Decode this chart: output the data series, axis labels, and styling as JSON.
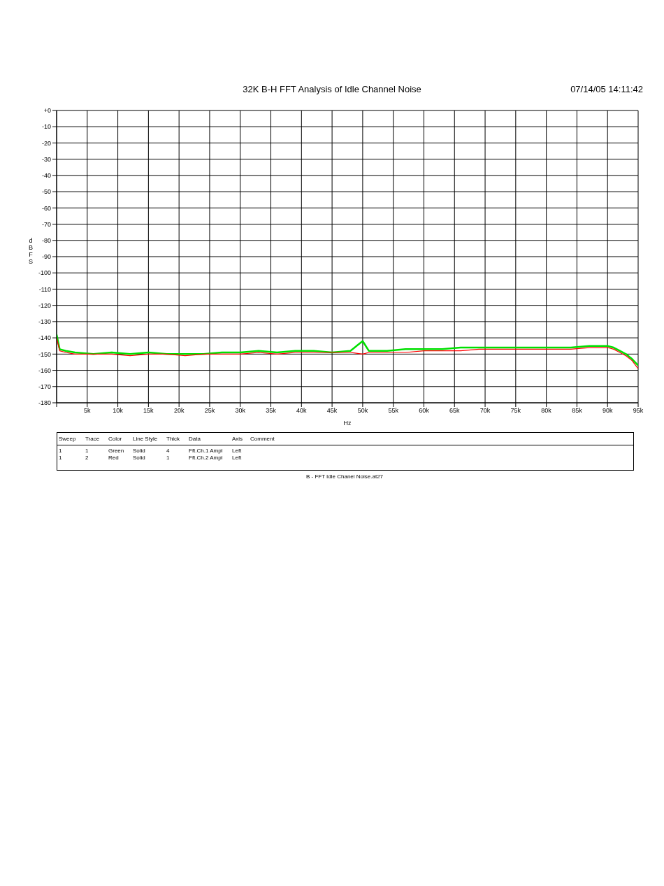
{
  "chart_data": {
    "type": "line",
    "title": "32K B-H FFT Analysis of Idle Channel Noise",
    "xlabel": "Hz",
    "ylabel": "dBFS",
    "annotations": [
      "07/14/05 14:11:42",
      "B - FFT Idle Chanel Noise.at27",
      "Sweep",
      "Trace",
      "Color",
      "Line Style",
      "Thick",
      "Data",
      "Axis",
      "Comment",
      "1",
      "1",
      "Green",
      "Solid",
      "4",
      "Fft.Ch.1 Ampl",
      "Left",
      "1",
      "2",
      "Red",
      "Solid",
      "1",
      "Fft.Ch.2 Ampl",
      "Left"
    ],
    "x": [
      0,
      500,
      1500,
      3000,
      6000,
      9000,
      12000,
      15000,
      18000,
      21000,
      24000,
      27000,
      30000,
      33000,
      36000,
      39000,
      42000,
      45000,
      48000,
      50000,
      51000,
      54000,
      57000,
      60000,
      63000,
      66000,
      69000,
      72000,
      75000,
      78000,
      81000,
      84000,
      87000,
      90000,
      91000,
      92000,
      93000,
      94000,
      95000
    ],
    "series": [
      {
        "color": "#00e000",
        "values": [
          -138,
          -147,
          -148,
          -149,
          -150,
          -149,
          -150,
          -149,
          -150,
          -150,
          -150,
          -149,
          -149,
          -148,
          -149,
          -148,
          -148,
          -149,
          -148,
          -142,
          -148,
          -148,
          -147,
          -147,
          -147,
          -146,
          -146,
          -146,
          -146,
          -146,
          -146,
          -146,
          -145,
          -145,
          -146,
          -148,
          -150,
          -153,
          -157
        ]
      },
      {
        "color": "#ff0000",
        "values": [
          -140,
          -148,
          -149,
          -150,
          -150,
          -150,
          -151,
          -150,
          -150,
          -151,
          -150,
          -150,
          -150,
          -149,
          -150,
          -149,
          -149,
          -149,
          -149,
          -150,
          -149,
          -149,
          -149,
          -148,
          -148,
          -148,
          -147,
          -147,
          -147,
          -147,
          -147,
          -147,
          -146,
          -146,
          -147,
          -149,
          -151,
          -154,
          -159
        ]
      }
    ],
    "xlim": [
      0,
      95000
    ],
    "xticks": [
      {
        "value": 0,
        "label": null
      },
      {
        "value": 5000,
        "label": "5k"
      },
      {
        "value": 10000,
        "label": "10k"
      },
      {
        "value": 15000,
        "label": "15k"
      },
      {
        "value": 20000,
        "label": "20k"
      },
      {
        "value": 25000,
        "label": "25k"
      },
      {
        "value": 30000,
        "label": "30k"
      },
      {
        "value": 35000,
        "label": "35k"
      },
      {
        "value": 40000,
        "label": "40k"
      },
      {
        "value": 45000,
        "label": "45k"
      },
      {
        "value": 50000,
        "label": "50k"
      },
      {
        "value": 55000,
        "label": "55k"
      },
      {
        "value": 60000,
        "label": "60k"
      },
      {
        "value": 65000,
        "label": "65k"
      },
      {
        "value": 70000,
        "label": "70k"
      },
      {
        "value": 75000,
        "label": "75k"
      },
      {
        "value": 80000,
        "label": "80k"
      },
      {
        "value": 85000,
        "label": "85k"
      },
      {
        "value": 90000,
        "label": "90k"
      },
      {
        "value": 95000,
        "label": "95k"
      }
    ],
    "ylim": [
      -180,
      0
    ],
    "yticks": [
      -180,
      -170,
      -160,
      -150,
      -140,
      -130,
      -120,
      -110,
      -100,
      -90,
      -80,
      -70,
      -60,
      -50,
      -40,
      -30,
      -20,
      -10,
      {
        "value": 0,
        "label": "+0"
      }
    ],
    "grid": true,
    "legend": false,
    "marker": "none",
    "line_style": "solid"
  }
}
